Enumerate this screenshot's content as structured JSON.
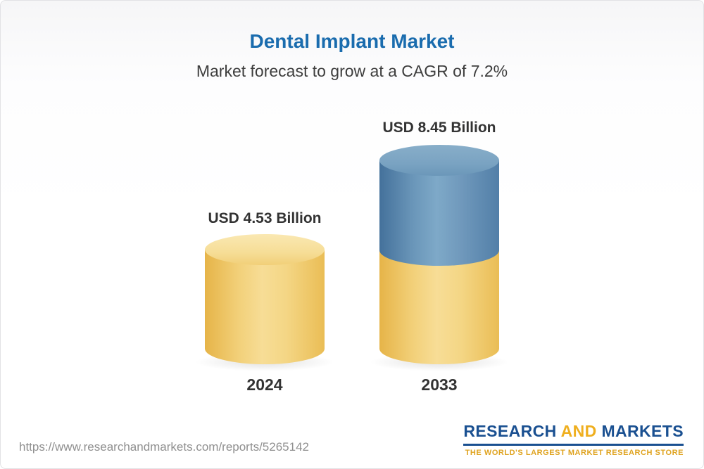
{
  "header": {
    "title": "Dental Implant Market",
    "subtitle": "Market forecast to grow at a CAGR of 7.2%"
  },
  "chart_data": {
    "type": "bar",
    "categories": [
      "2024",
      "2033"
    ],
    "values": [
      4.53,
      8.45
    ],
    "unit": "USD Billion",
    "value_labels": [
      "USD 4.53 Billion",
      "USD 8.45 Billion"
    ],
    "title": "Dental Implant Market",
    "subtitle": "Market forecast to grow at a CAGR of 7.2%",
    "cagr": "7.2%",
    "ylim": [
      0,
      9
    ],
    "grid": false,
    "legend": "none",
    "bar_style": "3d-cylinder",
    "colors": {
      "bar_2024": "#F2D079",
      "bar_2033_base": "#F2D079",
      "bar_2033_growth": "#6A96B9"
    }
  },
  "footer": {
    "url": "https://www.researchandmarkets.com/reports/5265142",
    "logo": {
      "word_research": "RESEARCH",
      "word_and": " AND ",
      "word_markets": "MARKETS",
      "tagline": "THE WORLD'S LARGEST MARKET RESEARCH STORE"
    }
  }
}
